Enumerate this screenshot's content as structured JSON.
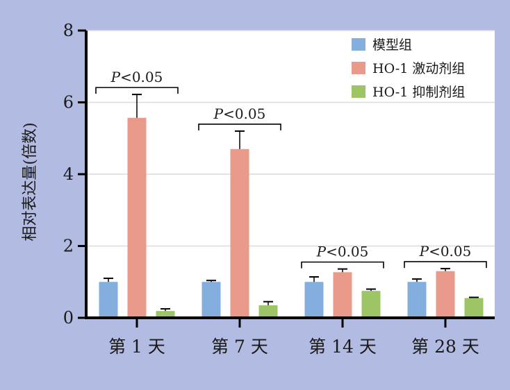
{
  "chart_data": {
    "type": "bar",
    "title": "",
    "xlabel": "",
    "ylabel": "相对表达量(倍数)",
    "ylim": [
      0,
      8
    ],
    "yticks": [
      "0",
      "2",
      "4",
      "6",
      "8"
    ],
    "categories": [
      "第 1 天",
      "第 7 天",
      "第 14 天",
      "第 28 天"
    ],
    "series": [
      {
        "name": "模型组",
        "color": "#84aede",
        "values": [
          1.0,
          1.0,
          1.0,
          1.0
        ],
        "errors": [
          0.1,
          0.04,
          0.14,
          0.08
        ]
      },
      {
        "name": "HO-1 激动剂组",
        "color": "#e99a8a",
        "values": [
          5.57,
          4.7,
          1.27,
          1.3
        ],
        "errors": [
          0.65,
          0.5,
          0.09,
          0.07
        ]
      },
      {
        "name": "HO-1 抑制剂组",
        "color": "#9ec565",
        "values": [
          0.19,
          0.35,
          0.75,
          0.55
        ],
        "errors": [
          0.06,
          0.1,
          0.05,
          0.02
        ]
      }
    ],
    "significance": [
      {
        "category": "第 1 天",
        "from_series": 0,
        "to_series": 2,
        "label": "P<0.05"
      },
      {
        "category": "第 7 天",
        "from_series": 0,
        "to_series": 2,
        "label": "P<0.05"
      },
      {
        "category": "第 14 天",
        "from_series": 0,
        "to_series": 2,
        "label": "P<0.05"
      },
      {
        "category": "第 28 天",
        "from_series": 0,
        "to_series": 2,
        "label": "P<0.05"
      }
    ],
    "legend_position": "top-right",
    "grid": "horizontal"
  }
}
